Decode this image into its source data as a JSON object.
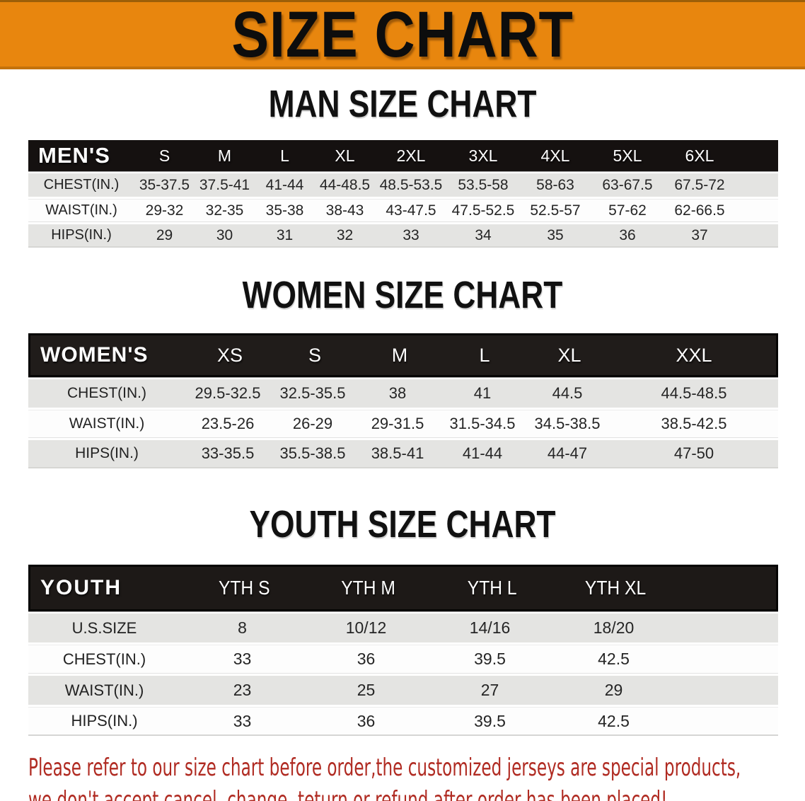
{
  "banner": {
    "title": "SIZE CHART",
    "bg_color": "#E8860E",
    "text_color": "#0d0d0d"
  },
  "sections": [
    {
      "heading": "MAN SIZE CHART",
      "header_label": "MEN'S",
      "columns": [
        "S",
        "M",
        "L",
        "XL",
        "2XL",
        "3XL",
        "4XL",
        "5XL",
        "6XL"
      ],
      "rows": [
        {
          "label": "CHEST(IN.)",
          "values": [
            "35-37.5",
            "37.5-41",
            "41-44",
            "44-48.5",
            "48.5-53.5",
            "53.5-58",
            "58-63",
            "63-67.5",
            "67.5-72"
          ]
        },
        {
          "label": "WAIST(IN.)",
          "values": [
            "29-32",
            "32-35",
            "35-38",
            "38-43",
            "43-47.5",
            "47.5-52.5",
            "52.5-57",
            "57-62",
            "62-66.5"
          ]
        },
        {
          "label": "HIPS(IN.)",
          "values": [
            "29",
            "30",
            "31",
            "32",
            "33",
            "34",
            "35",
            "36",
            "37"
          ]
        }
      ]
    },
    {
      "heading": "WOMEN SIZE CHART",
      "header_label": "WOMEN'S",
      "columns": [
        "XS",
        "S",
        "M",
        "L",
        "XL",
        "XXL"
      ],
      "rows": [
        {
          "label": "CHEST(IN.)",
          "values": [
            "29.5-32.5",
            "32.5-35.5",
            "38",
            "41",
            "44.5",
            "44.5-48.5"
          ]
        },
        {
          "label": "WAIST(IN.)",
          "values": [
            "23.5-26",
            "26-29",
            "29-31.5",
            "31.5-34.5",
            "34.5-38.5",
            "38.5-42.5"
          ]
        },
        {
          "label": "HIPS(IN.)",
          "values": [
            "33-35.5",
            "35.5-38.5",
            "38.5-41",
            "41-44",
            "44-47",
            "47-50"
          ]
        }
      ]
    },
    {
      "heading": "YOUTH SIZE CHART",
      "header_label": "YOUTH",
      "columns": [
        "YTH S",
        "YTH M",
        "YTH L",
        "YTH XL"
      ],
      "rows": [
        {
          "label": "U.S.SIZE",
          "values": [
            "8",
            "10/12",
            "14/16",
            "18/20"
          ]
        },
        {
          "label": "CHEST(IN.)",
          "values": [
            "33",
            "36",
            "39.5",
            "42.5"
          ]
        },
        {
          "label": "WAIST(IN.)",
          "values": [
            "23",
            "25",
            "27",
            "29"
          ]
        },
        {
          "label": "HIPS(IN.)",
          "values": [
            "33",
            "36",
            "39.5",
            "42.5"
          ]
        }
      ]
    }
  ],
  "footer": {
    "line1": "Please refer to our size chart before order,the customized jerseys are special products,",
    "line2": "we don't accept cancel, change, teturn or refund after order has been placed!",
    "text_color": "#b02b22"
  },
  "colors": {
    "banner_orange": "#E8860E",
    "table_header_black": "#1a1613",
    "row_shade_gray": "#e4e4e2",
    "row_light_white": "#fdfdfd",
    "notice_red": "#b02b22"
  }
}
